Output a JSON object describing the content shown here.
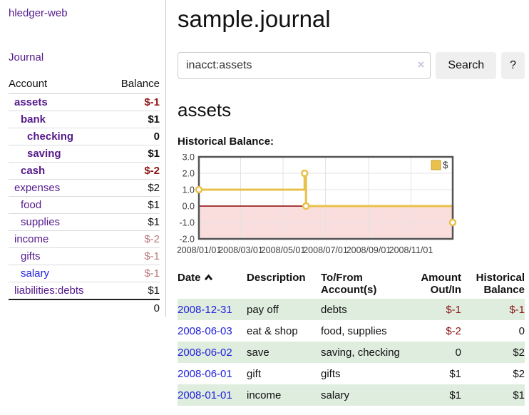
{
  "brand": "hledger-web",
  "nav": {
    "journal_label": "Journal"
  },
  "sidebar": {
    "columns": {
      "account": "Account",
      "balance": "Balance"
    },
    "accounts": [
      {
        "name": "assets",
        "balance": "$-1"
      },
      {
        "name": "bank",
        "balance": "$1"
      },
      {
        "name": "checking",
        "balance": "0"
      },
      {
        "name": "saving",
        "balance": "$1"
      },
      {
        "name": "cash",
        "balance": "$-2"
      },
      {
        "name": "expenses",
        "balance": "$2"
      },
      {
        "name": "food",
        "balance": "$1"
      },
      {
        "name": "supplies",
        "balance": "$1"
      },
      {
        "name": "income",
        "balance": "$-2"
      },
      {
        "name": "gifts",
        "balance": "$-1"
      },
      {
        "name": "salary",
        "balance": "$-1"
      },
      {
        "name": "liabilities:debts",
        "balance": "$1"
      }
    ],
    "total": "0"
  },
  "header": {
    "title": "sample.journal"
  },
  "search": {
    "value": "inacct:assets",
    "clear_label": "×",
    "button_label": "Search",
    "help_label": "?"
  },
  "account_page": {
    "heading": "assets",
    "chart_label": "Historical Balance:"
  },
  "chart_data": {
    "type": "line",
    "title": "Historical Balance",
    "steps": true,
    "series": [
      {
        "name": "$",
        "color": "#e8c04a",
        "points": [
          {
            "date": "2008/01/01",
            "value": 1
          },
          {
            "date": "2008/06/01",
            "value": 2
          },
          {
            "date": "2008/06/03",
            "value": 0
          },
          {
            "date": "2008/12/31",
            "value": -1
          }
        ]
      }
    ],
    "xlim": [
      "2008/01/01",
      "2008/12/31"
    ],
    "ylim": [
      -2,
      3
    ],
    "xticks": [
      "2008/01/01",
      "2008/03/01",
      "2008/05/01",
      "2008/07/01",
      "2008/09/01",
      "2008/11/01"
    ],
    "yticks": [
      3.0,
      2.0,
      1.0,
      0.0,
      -1.0,
      -2.0
    ],
    "grid": true,
    "legend": {
      "label": "$",
      "position": "top-right"
    },
    "negative_region_color": "#fadede",
    "zero_line_color": "#8b0000"
  },
  "register": {
    "columns": [
      "Date",
      "Description",
      "To/From Account(s)",
      "Amount Out/In",
      "Historical Balance"
    ],
    "rows": [
      {
        "date": "2008-12-31",
        "description": "pay off",
        "accounts": "debts",
        "amount": "$-1",
        "balance": "$-1"
      },
      {
        "date": "2008-06-03",
        "description": "eat & shop",
        "accounts": "food, supplies",
        "amount": "$-2",
        "balance": "0"
      },
      {
        "date": "2008-06-02",
        "description": "save",
        "accounts": "saving, checking",
        "amount": "0",
        "balance": "$2"
      },
      {
        "date": "2008-06-01",
        "description": "gift",
        "accounts": "gifts",
        "amount": "$1",
        "balance": "$2"
      },
      {
        "date": "2008-01-01",
        "description": "income",
        "accounts": "salary",
        "amount": "$1",
        "balance": "$1"
      }
    ]
  },
  "colors": {
    "link_purple": "#551a8b",
    "link_blue": "#2222dd",
    "negative_strong": "#8b1515",
    "negative_faded": "#bb7777",
    "row_green": "#dfeddf",
    "button_bg": "#efefef"
  }
}
